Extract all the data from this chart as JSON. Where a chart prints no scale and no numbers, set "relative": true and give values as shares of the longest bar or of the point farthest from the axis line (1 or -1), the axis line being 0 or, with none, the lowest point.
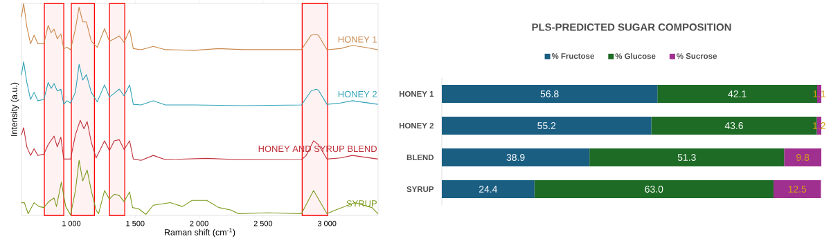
{
  "chart_data": [
    {
      "type": "line",
      "relative": true,
      "xlabel": "Raman shift (cm$^{-1}$)",
      "ylabel": "Intensity (a.u.)",
      "xlim": [
        610,
        3400
      ],
      "xticks": [
        {
          "value": 1000,
          "label": "1 000"
        },
        {
          "value": 1500,
          "label": "1 500"
        },
        {
          "value": 2000,
          "label": "2 000"
        },
        {
          "value": 2500,
          "label": "2 500"
        },
        {
          "value": 3000,
          "label": "3 000"
        }
      ],
      "bands": [
        {
          "axis": "x",
          "from": 789,
          "to": 941,
          "color": "#ff0000"
        },
        {
          "axis": "x",
          "from": 1000,
          "to": 1181,
          "color": "#ff0000"
        },
        {
          "axis": "x",
          "from": 1298,
          "to": 1418,
          "color": "#ff0000"
        },
        {
          "axis": "x",
          "from": 2806,
          "to": 3006,
          "color": "#ff0000"
        }
      ],
      "series": [
        {
          "name": "HONEY 1",
          "color": "#c8874a",
          "x": [
            610,
            627,
            652,
            681,
            709,
            738,
            785,
            819,
            842,
            865,
            890,
            918,
            941,
            966,
            994,
            1032,
            1061,
            1089,
            1118,
            1156,
            1203,
            1260,
            1298,
            1336,
            1375,
            1413,
            1456,
            1485,
            1546,
            1641,
            1736,
            1964,
            2154,
            2344,
            2800,
            2876,
            2914,
            2933,
            3000,
            3104,
            3199,
            3295,
            3399
          ],
          "values": [
            0.936,
            1.0,
            0.89,
            0.81,
            0.85,
            0.81,
            0.81,
            0.896,
            0.862,
            0.879,
            0.833,
            0.856,
            0.787,
            0.793,
            0.782,
            0.879,
            0.982,
            0.913,
            0.913,
            0.822,
            0.793,
            0.881,
            0.822,
            0.833,
            0.847,
            0.816,
            0.875,
            0.787,
            0.782,
            0.797,
            0.782,
            0.779,
            0.787,
            0.782,
            0.782,
            0.85,
            0.854,
            0.85,
            0.782,
            0.787,
            0.802,
            0.793,
            0.782
          ]
        },
        {
          "name": "HONEY 2",
          "color": "#2fa3b8",
          "x": [
            610,
            627,
            652,
            681,
            709,
            738,
            785,
            819,
            842,
            865,
            890,
            918,
            941,
            966,
            994,
            1032,
            1061,
            1089,
            1118,
            1156,
            1203,
            1260,
            1298,
            1336,
            1375,
            1413,
            1456,
            1485,
            1546,
            1641,
            1736,
            1964,
            2344,
            2800,
            2876,
            2914,
            2933,
            3000,
            3104,
            3199,
            3399
          ],
          "values": [
            0.662,
            0.725,
            0.627,
            0.547,
            0.581,
            0.541,
            0.547,
            0.627,
            0.599,
            0.622,
            0.587,
            0.595,
            0.524,
            0.541,
            0.53,
            0.581,
            0.713,
            0.639,
            0.664,
            0.581,
            0.536,
            0.616,
            0.559,
            0.576,
            0.596,
            0.564,
            0.616,
            0.524,
            0.521,
            0.541,
            0.521,
            0.521,
            0.518,
            0.521,
            0.587,
            0.595,
            0.591,
            0.524,
            0.53,
            0.541,
            0.524
          ]
        },
        {
          "name": "HONEY AND SYRUP BLEND",
          "color": "#c0303a",
          "x": [
            610,
            627,
            652,
            681,
            709,
            738,
            785,
            819,
            865,
            890,
            918,
            941,
            994,
            1032,
            1070,
            1099,
            1124,
            1156,
            1194,
            1260,
            1298,
            1336,
            1375,
            1413,
            1456,
            1485,
            1546,
            1641,
            1736,
            2059,
            2344,
            2800,
            2838,
            2895,
            2933,
            3000,
            3104,
            3199,
            3399
          ],
          "values": [
            0.38,
            0.414,
            0.323,
            0.283,
            0.314,
            0.283,
            0.289,
            0.334,
            0.374,
            0.323,
            0.369,
            0.266,
            0.266,
            0.38,
            0.449,
            0.409,
            0.443,
            0.346,
            0.271,
            0.352,
            0.306,
            0.352,
            0.357,
            0.311,
            0.352,
            0.266,
            0.26,
            0.283,
            0.263,
            0.269,
            0.262,
            0.263,
            0.283,
            0.352,
            0.334,
            0.266,
            0.271,
            0.283,
            0.266
          ]
        },
        {
          "name": "SYRUP",
          "color": "#7a9a1e",
          "x": [
            610,
            633,
            662,
            709,
            747,
            785,
            823,
            865,
            884,
            922,
            956,
            994,
            1032,
            1061,
            1089,
            1124,
            1156,
            1194,
            1213,
            1260,
            1298,
            1336,
            1375,
            1413,
            1456,
            1479,
            1527,
            1584,
            1641,
            1774,
            1869,
            1945,
            2059,
            2154,
            2249,
            2306,
            2534,
            2800,
            2895,
            3000,
            3066,
            3218,
            3352,
            3399
          ],
          "values": [
            0.06,
            0.06,
            0.008,
            0.06,
            0.042,
            0.037,
            0.065,
            0.082,
            0.042,
            0.157,
            0.042,
            0.002,
            0.117,
            0.26,
            0.163,
            0.214,
            0.117,
            0.025,
            0.008,
            0.117,
            0.077,
            0.1,
            0.094,
            0.065,
            0.111,
            0.037,
            0.031,
            0.005,
            0.048,
            0.06,
            0.042,
            0.071,
            0.071,
            0.037,
            0.025,
            0.008,
            0.012,
            0.008,
            0.117,
            0.008,
            0.025,
            0.06,
            0.037,
            0.008
          ]
        }
      ]
    },
    {
      "type": "bar",
      "orientation": "horizontal",
      "stacked": true,
      "title": "PLS-PREDICTED SUGAR COMPOSITION",
      "categories": [
        "HONEY 1",
        "HONEY 2",
        "BLEND",
        "SYRUP"
      ],
      "xlim": [
        0,
        100
      ],
      "legend": "top",
      "data_labels": true,
      "series": [
        {
          "name": "% Fructose",
          "color": "#1a5e82",
          "values": [
            56.8,
            55.2,
            38.9,
            24.4
          ]
        },
        {
          "name": "% Glucose",
          "color": "#1e6b26",
          "values": [
            42.1,
            43.6,
            51.3,
            63.0
          ],
          "value_labels": [
            "42.1",
            "43.6",
            "51.3",
            "63.0"
          ]
        },
        {
          "name": "% Sucrose",
          "color": "#a0308f",
          "values": [
            1.1,
            1.2,
            9.8,
            12.5
          ]
        }
      ]
    }
  ]
}
